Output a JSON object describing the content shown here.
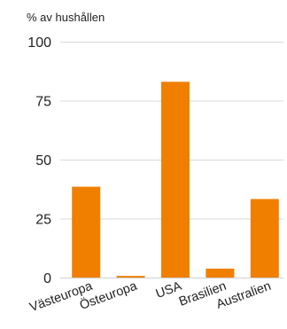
{
  "chart_data": {
    "type": "bar",
    "unit_label": "% av hushållen",
    "categories": [
      "Västeuropa",
      "Östeuropa",
      "USA",
      "Brasilien",
      "Australien"
    ],
    "values": [
      38.5,
      0.7,
      83,
      3.8,
      33.3
    ],
    "ylim": [
      0,
      100
    ],
    "yticks": [
      "0",
      "25",
      "50",
      "75",
      "100"
    ],
    "ytick_values": [
      0,
      25,
      50,
      75,
      100
    ],
    "grid": true,
    "legend": "none",
    "bar_color": "#f07f00"
  }
}
